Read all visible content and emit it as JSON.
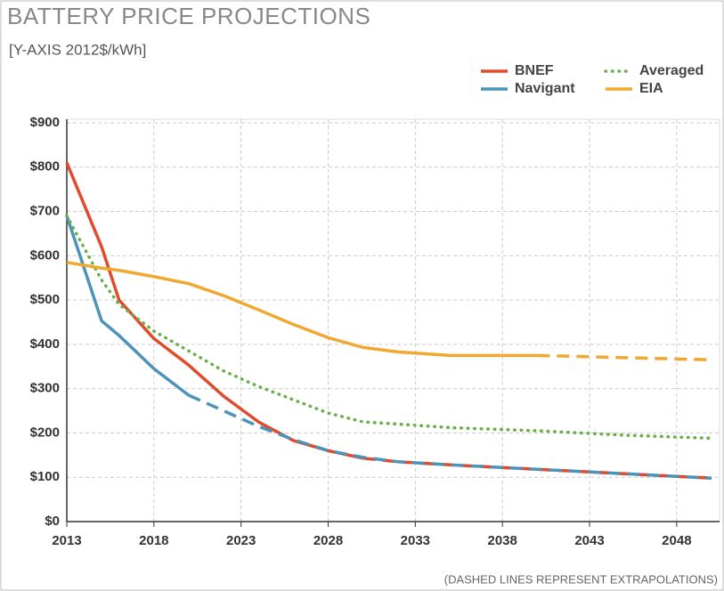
{
  "chart_data": {
    "type": "line",
    "title": "BATTERY PRICE PROJECTIONS",
    "subtitle": "[Y-AXIS 2012$/kWh]",
    "annotation": "(DASHED LINES REPRESENT EXTRAPOLATIONS)",
    "x": [
      2013,
      2015,
      2016,
      2018,
      2020,
      2022,
      2024,
      2026,
      2028,
      2030,
      2032,
      2035,
      2040,
      2045,
      2050
    ],
    "series": [
      {
        "name": "BNEF",
        "color": "#e04b2b",
        "style": "solid",
        "dashed_from": 2030,
        "values": [
          810,
          620,
          500,
          413,
          353,
          283,
          225,
          183,
          160,
          143,
          135,
          128,
          118,
          108,
          98
        ]
      },
      {
        "name": "Navigant",
        "color": "#4d93b9",
        "style": "solid",
        "dashed_from": 2020,
        "values": [
          690,
          453,
          420,
          345,
          285,
          250,
          215,
          185,
          160,
          145,
          135,
          128,
          118,
          108,
          98
        ]
      },
      {
        "name": "Averaged",
        "color": "#6aae4a",
        "style": "dotted",
        "values": [
          690,
          545,
          490,
          430,
          385,
          340,
          305,
          275,
          245,
          225,
          220,
          212,
          205,
          195,
          188
        ]
      },
      {
        "name": "EIA",
        "color": "#f0a830",
        "style": "solid",
        "dashed_from": 2040,
        "values": [
          585,
          572,
          567,
          553,
          537,
          510,
          478,
          445,
          415,
          393,
          383,
          375,
          375,
          370,
          365
        ]
      }
    ],
    "xlim": [
      2013,
      2050
    ],
    "xticks": [
      2013,
      2018,
      2023,
      2028,
      2033,
      2038,
      2043,
      2048
    ],
    "ylim": [
      0,
      900
    ],
    "yticks": [
      {
        "value": 0,
        "label": "$0"
      },
      {
        "value": 100,
        "label": "$100"
      },
      {
        "value": 200,
        "label": "$200"
      },
      {
        "value": 300,
        "label": "$300"
      },
      {
        "value": 400,
        "label": "$400"
      },
      {
        "value": 500,
        "label": "$500"
      },
      {
        "value": 600,
        "label": "$600"
      },
      {
        "value": 700,
        "label": "$700"
      },
      {
        "value": 800,
        "label": "$800"
      },
      {
        "value": 900,
        "label": "$900"
      }
    ],
    "grid": true
  }
}
